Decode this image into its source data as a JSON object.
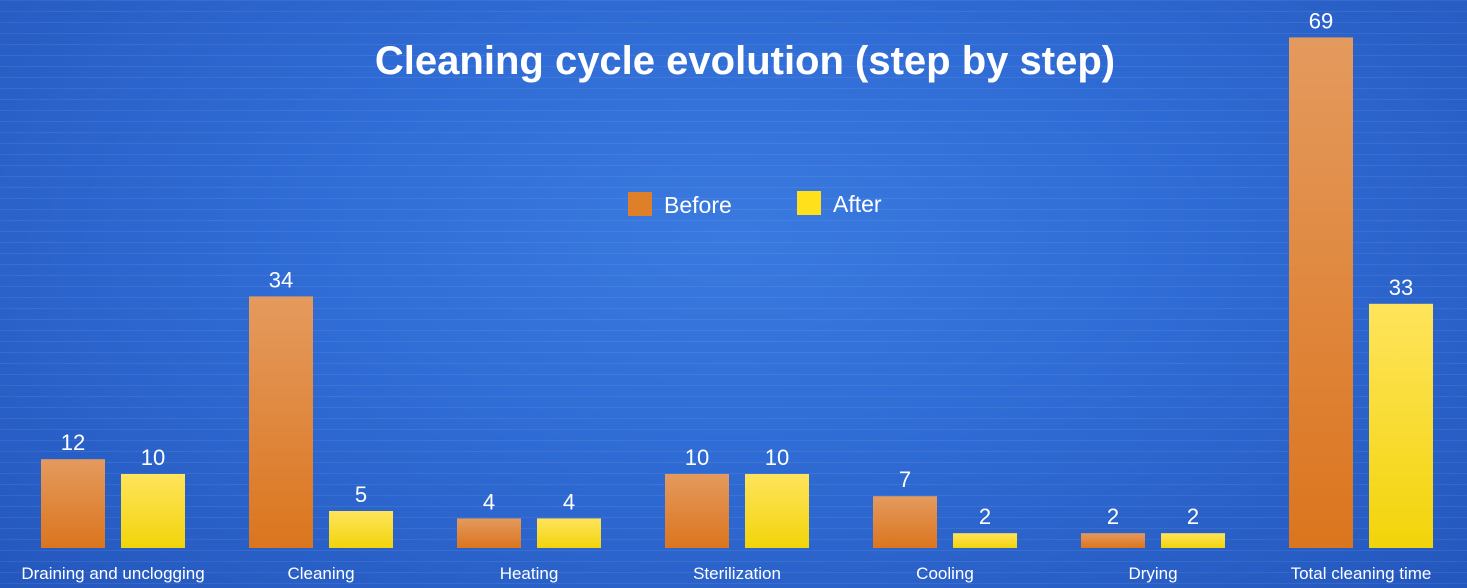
{
  "chart_data": {
    "type": "bar",
    "title": "Cleaning cycle evolution (step by step)",
    "categories": [
      "Draining and unclogging",
      "Cleaning",
      "Heating",
      "Sterilization",
      "Cooling",
      "Drying",
      "Total cleaning time"
    ],
    "series": [
      {
        "name": "Before",
        "values": [
          12,
          34,
          4,
          10,
          7,
          2,
          69
        ],
        "color": "#e07f2a"
      },
      {
        "name": "After",
        "values": [
          10,
          5,
          4,
          10,
          2,
          2,
          33
        ],
        "color": "#ffe01a"
      }
    ],
    "ylim": [
      0,
      70
    ],
    "legend_position": "top-center",
    "grid": false
  }
}
